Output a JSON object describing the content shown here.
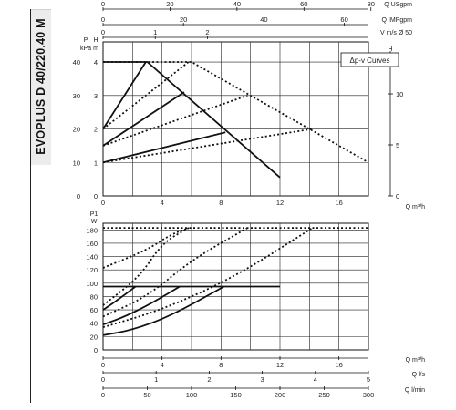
{
  "model": "EVOPLUS D 40/220.40 M",
  "chart_data": [
    {
      "type": "line",
      "title": "",
      "legend_box": "Δp-v Curves",
      "xlabel": "Q m³/h",
      "x_ticks": [
        0,
        4,
        8,
        12,
        16
      ],
      "xlim": [
        0,
        18
      ],
      "ylabel_left_unit_top": "P",
      "ylabel_left_unit": "kPa",
      "ylabel_left": "H",
      "ylabel_left2": "m",
      "y_ticks_m": [
        0,
        1,
        2,
        3,
        4
      ],
      "y_ticks_kpa": [
        0,
        10,
        20,
        30,
        40
      ],
      "ylim_m": [
        0,
        4.6
      ],
      "ylabel_right": "H",
      "ylabel_right2": "ft",
      "y_ticks_ft": [
        0,
        5,
        10
      ],
      "top_axes": [
        {
          "label": "Q USgpm",
          "ticks": [
            0,
            20,
            40,
            60,
            80
          ]
        },
        {
          "label": "Q IMPgpm",
          "ticks": [
            0,
            20,
            40,
            60
          ]
        },
        {
          "label": "V m/s Ø 50",
          "ticks": [
            0,
            1,
            2
          ]
        }
      ],
      "series": [
        {
          "style": "solid",
          "x": [
            0,
            3,
            12
          ],
          "y": [
            4,
            4,
            0.55
          ]
        },
        {
          "style": "dotted",
          "x": [
            0,
            6,
            18
          ],
          "y": [
            4,
            4,
            1
          ]
        },
        {
          "style": "solid",
          "x": [
            0,
            2.9
          ],
          "y": [
            2,
            4
          ]
        },
        {
          "style": "solid",
          "x": [
            0,
            5.5
          ],
          "y": [
            1.5,
            3.1
          ]
        },
        {
          "style": "solid",
          "x": [
            0,
            8.3
          ],
          "y": [
            1,
            1.9
          ]
        },
        {
          "style": "dotted",
          "x": [
            0,
            5.8
          ],
          "y": [
            2,
            4
          ]
        },
        {
          "style": "dotted",
          "x": [
            0,
            9.8
          ],
          "y": [
            1.5,
            3
          ]
        },
        {
          "style": "dotted",
          "x": [
            0,
            14.2
          ],
          "y": [
            1,
            2
          ]
        }
      ]
    },
    {
      "type": "line",
      "title": "",
      "xlabel": "Q m³/h",
      "x_ticks": [
        0,
        4,
        8,
        12,
        16
      ],
      "xlim": [
        0,
        18
      ],
      "ylabel": "P1",
      "yunit": "W",
      "y_ticks": [
        0,
        20,
        40,
        60,
        80,
        100,
        120,
        140,
        160,
        180
      ],
      "ylim": [
        0,
        190
      ],
      "bottom_axes": [
        {
          "label": "Q l/s",
          "ticks": [
            0,
            1,
            2,
            3,
            4,
            5
          ]
        },
        {
          "label": "Q l/min",
          "ticks": [
            0,
            50,
            100,
            150,
            200,
            250,
            300
          ]
        }
      ],
      "series": [
        {
          "style": "solid",
          "x": [
            0,
            12
          ],
          "y": [
            95,
            95
          ]
        },
        {
          "style": "solid",
          "x": [
            0,
            2,
            4.5,
            8.2
          ],
          "y": [
            22,
            30,
            50,
            95
          ]
        },
        {
          "style": "solid",
          "x": [
            0,
            1.5,
            3.3,
            5.2
          ],
          "y": [
            38,
            50,
            70,
            95
          ]
        },
        {
          "style": "solid",
          "x": [
            0,
            1,
            2.2
          ],
          "y": [
            60,
            75,
            95
          ]
        },
        {
          "style": "dotted",
          "x": [
            0,
            18
          ],
          "y": [
            183,
            183
          ]
        },
        {
          "style": "dotted",
          "x": [
            0,
            4,
            9,
            14.2
          ],
          "y": [
            34,
            60,
            110,
            183
          ]
        },
        {
          "style": "dotted",
          "x": [
            0,
            3,
            6,
            9.8
          ],
          "y": [
            50,
            80,
            135,
            183
          ]
        },
        {
          "style": "dotted",
          "x": [
            0,
            2.5,
            4,
            5.8
          ],
          "y": [
            67,
            110,
            160,
            183
          ]
        },
        {
          "style": "dotted",
          "x": [
            0,
            3,
            4.5,
            5.8
          ],
          "y": [
            123,
            150,
            172,
            183
          ]
        }
      ]
    }
  ]
}
